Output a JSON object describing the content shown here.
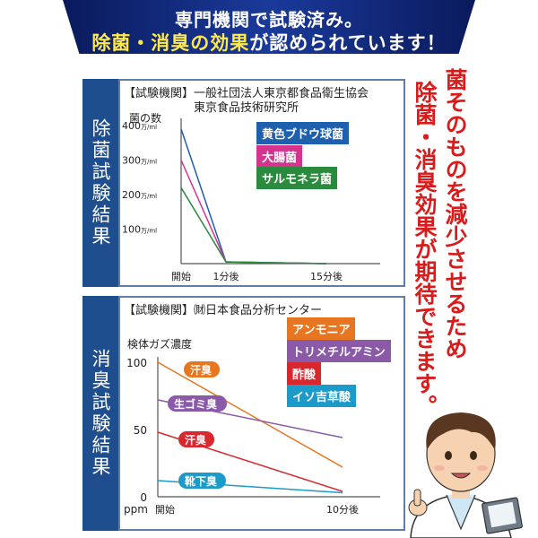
{
  "banner": {
    "line1": "専門機関で試験済み。",
    "line2_highlight": "除菌・消臭の効果",
    "line2_rest": "が認められています！"
  },
  "section1": {
    "tab_label": "除菌試験結果",
    "org_line1": "【試験機関】一般社団法人東京都食品衛生協会",
    "org_line2": "東京食品技術研究所",
    "ylabel": "菌の数",
    "xlabel_start": "開始",
    "legend": [
      {
        "label": "黄色ブドウ球菌",
        "color": "#1e5fae"
      },
      {
        "label": "大腸菌",
        "color": "#d6338e"
      },
      {
        "label": "サルモネラ菌",
        "color": "#2a8a3e"
      }
    ]
  },
  "section2": {
    "tab_label": "消臭試験結果",
    "org_line": "【試験機関】㈶日本食品分析センター",
    "ylabel": "検体ガズ濃度",
    "unit": "ppm",
    "legend": [
      {
        "label": "アンモニア",
        "color": "#e8751f"
      },
      {
        "label": "トリメチルアミン",
        "color": "#8a5aa8"
      },
      {
        "label": "酢酸",
        "color": "#d9272e"
      },
      {
        "label": "イソ吉草酸",
        "color": "#1c9ac9"
      }
    ]
  },
  "right_text": {
    "col1": "菌そのものを減少させるため",
    "col2": "除菌・消臭効果が期待できます。"
  },
  "chart_data": [
    {
      "type": "line",
      "title": "除菌試験結果",
      "ylabel": "菌の数",
      "categories": [
        "開始",
        "1分後",
        "15分後"
      ],
      "yticks": [
        "100万/ml",
        "200万/ml",
        "300万/ml",
        "400万/ml"
      ],
      "ylim": [
        0,
        400
      ],
      "series": [
        {
          "name": "黄色ブドウ球菌",
          "color": "#1e5fae",
          "values": [
            390,
            5,
            0
          ]
        },
        {
          "name": "大腸菌",
          "color": "#d6338e",
          "values": [
            300,
            5,
            0
          ]
        },
        {
          "name": "サルモネラ菌",
          "color": "#2a8a3e",
          "values": [
            220,
            5,
            0
          ]
        }
      ]
    },
    {
      "type": "line",
      "title": "消臭試験結果",
      "ylabel": "検体ガズ濃度",
      "categories": [
        "開始",
        "10分後"
      ],
      "yticks": [
        "0",
        "50",
        "100"
      ],
      "ylim": [
        0,
        100
      ],
      "series": [
        {
          "name": "汗臭",
          "color": "#e8751f",
          "values": [
            100,
            22
          ]
        },
        {
          "name": "生ゴミ臭",
          "color": "#8a5aa8",
          "values": [
            72,
            44
          ]
        },
        {
          "name": "汗臭",
          "color": "#d9272e",
          "values": [
            48,
            4
          ]
        },
        {
          "name": "靴下臭",
          "color": "#1c9ac9",
          "values": [
            12,
            3
          ]
        }
      ]
    }
  ]
}
